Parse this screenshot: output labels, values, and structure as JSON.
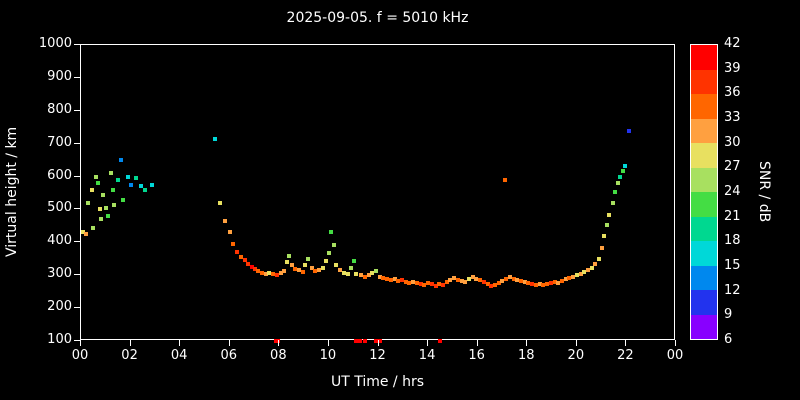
{
  "background": "#000000",
  "foreground": "#ffffff",
  "chart_data": {
    "type": "scatter",
    "title": "2025-09-05. f = 5010 kHz",
    "xlabel": "UT Time / hrs",
    "ylabel": "Virtual height / km",
    "colorbar_label": "SNR / dB",
    "xlim": [
      0,
      24
    ],
    "ylim": [
      100,
      1000
    ],
    "grid": false,
    "x_tick_values": [
      0,
      2,
      4,
      6,
      8,
      10,
      12,
      14,
      16,
      18,
      20,
      22,
      24
    ],
    "x_tick_labels": [
      "00",
      "02",
      "04",
      "06",
      "08",
      "10",
      "12",
      "14",
      "16",
      "18",
      "20",
      "22",
      "00"
    ],
    "y_tick_values": [
      100,
      200,
      300,
      400,
      500,
      600,
      700,
      800,
      900,
      1000
    ],
    "colorbar": {
      "labels_top_to_bottom": [
        "42",
        "39",
        "36",
        "33",
        "30",
        "27",
        "24",
        "21",
        "18",
        "15",
        "12",
        "9",
        "6"
      ],
      "segments_low_to_high": [
        {
          "min": 6,
          "max": 9,
          "color": "#8800ff"
        },
        {
          "min": 9,
          "max": 12,
          "color": "#2233ee"
        },
        {
          "min": 12,
          "max": 15,
          "color": "#0088ee"
        },
        {
          "min": 15,
          "max": 18,
          "color": "#00d8d8"
        },
        {
          "min": 18,
          "max": 21,
          "color": "#00d890"
        },
        {
          "min": 21,
          "max": 24,
          "color": "#44dd44"
        },
        {
          "min": 24,
          "max": 27,
          "color": "#a8e060"
        },
        {
          "min": 27,
          "max": 30,
          "color": "#e8e060"
        },
        {
          "min": 30,
          "max": 33,
          "color": "#ffa040"
        },
        {
          "min": 33,
          "max": 36,
          "color": "#ff6600"
        },
        {
          "min": 36,
          "max": 39,
          "color": "#ff3300"
        },
        {
          "min": 39,
          "max": 42,
          "color": "#ff0000"
        }
      ]
    },
    "points_format": [
      "ut_hours",
      "virtual_height_km",
      "snr_db"
    ],
    "points": [
      [
        0.1,
        430,
        27
      ],
      [
        0.2,
        425,
        30
      ],
      [
        0.3,
        520,
        24
      ],
      [
        0.45,
        560,
        27
      ],
      [
        0.5,
        445,
        24
      ],
      [
        0.6,
        600,
        24
      ],
      [
        0.7,
        580,
        21
      ],
      [
        0.75,
        500,
        27
      ],
      [
        0.8,
        470,
        24
      ],
      [
        0.9,
        545,
        24
      ],
      [
        1.0,
        505,
        24
      ],
      [
        1.1,
        480,
        21
      ],
      [
        1.2,
        610,
        24
      ],
      [
        1.3,
        560,
        21
      ],
      [
        1.35,
        515,
        24
      ],
      [
        1.5,
        590,
        18
      ],
      [
        1.6,
        650,
        12
      ],
      [
        1.7,
        530,
        21
      ],
      [
        1.9,
        600,
        15
      ],
      [
        2.0,
        575,
        12
      ],
      [
        2.2,
        595,
        18
      ],
      [
        2.4,
        570,
        15
      ],
      [
        2.6,
        560,
        18
      ],
      [
        2.85,
        575,
        15
      ],
      [
        5.4,
        715,
        15
      ],
      [
        5.6,
        520,
        27
      ],
      [
        5.8,
        465,
        30
      ],
      [
        6.0,
        430,
        30
      ],
      [
        6.15,
        395,
        33
      ],
      [
        6.3,
        370,
        36
      ],
      [
        6.45,
        355,
        33
      ],
      [
        6.6,
        345,
        36
      ],
      [
        6.75,
        335,
        36
      ],
      [
        6.9,
        325,
        39
      ],
      [
        7.0,
        318,
        36
      ],
      [
        7.15,
        312,
        33
      ],
      [
        7.3,
        308,
        33
      ],
      [
        7.45,
        305,
        30
      ],
      [
        7.6,
        308,
        27
      ],
      [
        7.75,
        305,
        33
      ],
      [
        7.9,
        302,
        36
      ],
      [
        7.85,
        100,
        39
      ],
      [
        7.95,
        100,
        42
      ],
      [
        8.05,
        308,
        30
      ],
      [
        8.2,
        312,
        30
      ],
      [
        8.3,
        340,
        27
      ],
      [
        8.4,
        358,
        24
      ],
      [
        8.5,
        332,
        30
      ],
      [
        8.65,
        320,
        33
      ],
      [
        8.8,
        315,
        30
      ],
      [
        8.95,
        310,
        33
      ],
      [
        9.05,
        330,
        27
      ],
      [
        9.15,
        348,
        24
      ],
      [
        9.3,
        322,
        30
      ],
      [
        9.45,
        312,
        33
      ],
      [
        9.6,
        315,
        30
      ],
      [
        9.75,
        322,
        27
      ],
      [
        9.9,
        342,
        27
      ],
      [
        10.0,
        368,
        24
      ],
      [
        10.1,
        430,
        21
      ],
      [
        10.2,
        392,
        24
      ],
      [
        10.3,
        332,
        27
      ],
      [
        10.45,
        315,
        30
      ],
      [
        10.6,
        308,
        27
      ],
      [
        10.75,
        305,
        27
      ],
      [
        10.9,
        322,
        24
      ],
      [
        11.0,
        342,
        21
      ],
      [
        11.1,
        305,
        27
      ],
      [
        11.1,
        100,
        39
      ],
      [
        11.25,
        100,
        42
      ],
      [
        11.45,
        100,
        39
      ],
      [
        11.9,
        100,
        39
      ],
      [
        12.05,
        100,
        42
      ],
      [
        11.3,
        300,
        30
      ],
      [
        11.45,
        296,
        33
      ],
      [
        11.6,
        300,
        30
      ],
      [
        11.75,
        308,
        27
      ],
      [
        11.9,
        312,
        24
      ],
      [
        12.05,
        296,
        30
      ],
      [
        12.2,
        292,
        33
      ],
      [
        12.35,
        288,
        33
      ],
      [
        12.5,
        285,
        33
      ],
      [
        12.65,
        290,
        30
      ],
      [
        12.8,
        282,
        33
      ],
      [
        12.95,
        286,
        36
      ],
      [
        13.1,
        280,
        33
      ],
      [
        13.25,
        276,
        33
      ],
      [
        13.4,
        280,
        30
      ],
      [
        13.55,
        276,
        33
      ],
      [
        13.7,
        272,
        36
      ],
      [
        13.85,
        270,
        33
      ],
      [
        14.0,
        275,
        33
      ],
      [
        14.15,
        272,
        36
      ],
      [
        14.3,
        268,
        36
      ],
      [
        14.45,
        274,
        33
      ],
      [
        14.5,
        100,
        39
      ],
      [
        14.6,
        270,
        36
      ],
      [
        14.75,
        280,
        33
      ],
      [
        14.9,
        286,
        30
      ],
      [
        15.05,
        292,
        30
      ],
      [
        15.2,
        286,
        33
      ],
      [
        15.35,
        282,
        30
      ],
      [
        15.5,
        280,
        30
      ],
      [
        15.65,
        290,
        27
      ],
      [
        15.8,
        296,
        30
      ],
      [
        15.95,
        290,
        30
      ],
      [
        16.1,
        286,
        33
      ],
      [
        16.25,
        280,
        36
      ],
      [
        16.4,
        272,
        33
      ],
      [
        16.55,
        266,
        36
      ],
      [
        16.7,
        270,
        33
      ],
      [
        16.85,
        276,
        33
      ],
      [
        17.0,
        282,
        30
      ],
      [
        17.1,
        590,
        33
      ],
      [
        17.15,
        290,
        33
      ],
      [
        17.3,
        294,
        30
      ],
      [
        17.45,
        290,
        33
      ],
      [
        17.6,
        286,
        30
      ],
      [
        17.75,
        282,
        33
      ],
      [
        17.9,
        278,
        30
      ],
      [
        18.05,
        275,
        33
      ],
      [
        18.2,
        272,
        36
      ],
      [
        18.35,
        270,
        33
      ],
      [
        18.5,
        274,
        30
      ],
      [
        18.65,
        270,
        33
      ],
      [
        18.8,
        272,
        33
      ],
      [
        18.95,
        276,
        36
      ],
      [
        19.1,
        280,
        33
      ],
      [
        19.25,
        276,
        30
      ],
      [
        19.4,
        282,
        33
      ],
      [
        19.55,
        288,
        30
      ],
      [
        19.7,
        292,
        33
      ],
      [
        19.85,
        296,
        30
      ],
      [
        20.0,
        300,
        27
      ],
      [
        20.15,
        304,
        30
      ],
      [
        20.3,
        310,
        27
      ],
      [
        20.45,
        316,
        30
      ],
      [
        20.6,
        322,
        27
      ],
      [
        20.75,
        335,
        30
      ],
      [
        20.9,
        350,
        27
      ],
      [
        21.0,
        382,
        30
      ],
      [
        21.1,
        420,
        27
      ],
      [
        21.2,
        452,
        24
      ],
      [
        21.3,
        482,
        27
      ],
      [
        21.45,
        520,
        24
      ],
      [
        21.55,
        552,
        21
      ],
      [
        21.65,
        580,
        24
      ],
      [
        21.75,
        600,
        18
      ],
      [
        21.85,
        618,
        21
      ],
      [
        21.95,
        632,
        15
      ],
      [
        22.1,
        740,
        9
      ]
    ]
  }
}
